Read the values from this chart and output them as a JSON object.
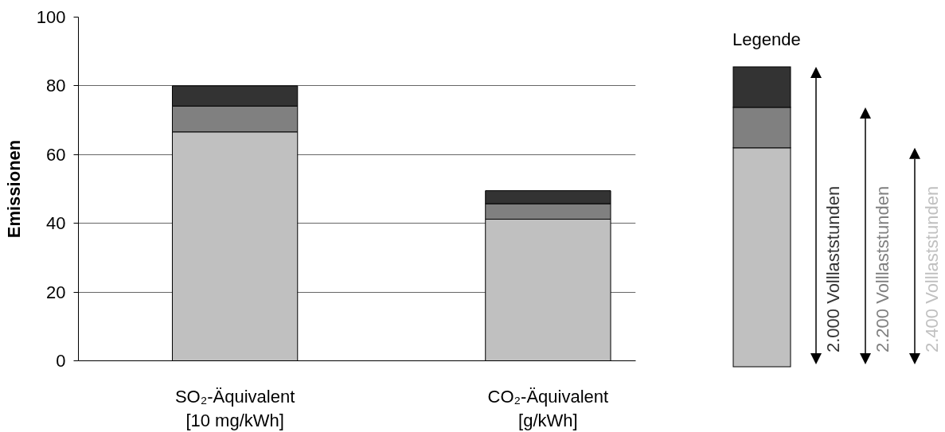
{
  "chart_data": {
    "type": "bar",
    "stacked": true,
    "ylabel": "Emissionen",
    "legend_title": "Legende",
    "legend": "right",
    "grid": "y",
    "categories": [
      "SO₂-Äquivalent\n[10 mg/kWh]",
      "CO₂-Äquivalent\n[g/kWh]"
    ],
    "ylim": [
      0,
      100
    ],
    "yticks": [
      0,
      20,
      40,
      60,
      80,
      100
    ],
    "series": [
      {
        "name": "2.400 Volllaststunden",
        "color": "#c0c0c0",
        "values": [
          66.6,
          41.2
        ]
      },
      {
        "name": "2.200 Volllaststunden",
        "color": "#808080",
        "values": [
          7.5,
          4.5
        ]
      },
      {
        "name": "2.000 Volllaststunden",
        "color": "#333333",
        "values": [
          5.9,
          3.8
        ]
      }
    ]
  }
}
